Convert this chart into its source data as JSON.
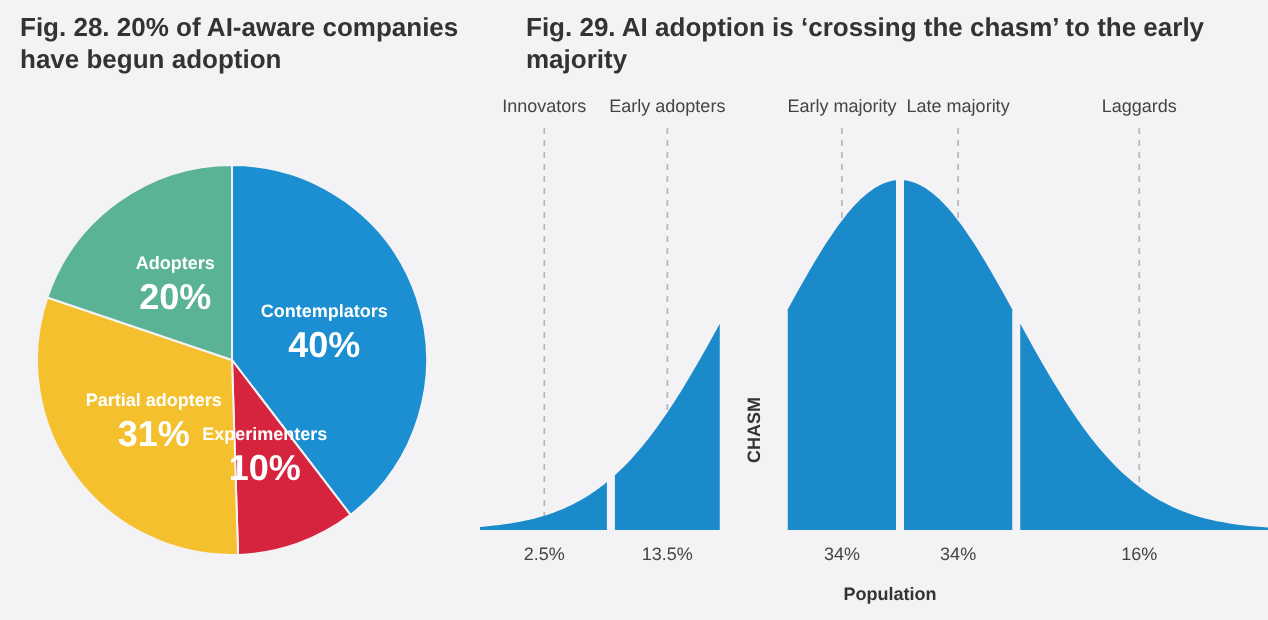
{
  "chart_data": [
    {
      "type": "pie",
      "title": "Fig. 28. 20% of AI-aware companies have begun adoption",
      "categories": [
        "Contemplators",
        "Experimenters",
        "Partial adopters",
        "Adopters"
      ],
      "values": [
        40,
        10,
        31,
        20
      ],
      "colors": [
        "#1b8fd2",
        "#d6243f",
        "#f4c02d",
        "#5ab396"
      ],
      "value_labels": [
        "40%",
        "10%",
        "31%",
        "20%"
      ]
    },
    {
      "type": "other",
      "title": "Fig. 29. AI adoption is ‘crossing the chasm’ to the early majority",
      "xlabel": "Population",
      "categories": [
        "Innovators",
        "Early adopters",
        "Early majority",
        "Late majority",
        "Laggards"
      ],
      "values": [
        2.5,
        13.5,
        34,
        34,
        16
      ],
      "value_labels": [
        "2.5%",
        "13.5%",
        "34%",
        "34%",
        "16%"
      ],
      "color": "#1a8acb",
      "annotations": [
        "CHASM"
      ]
    }
  ]
}
